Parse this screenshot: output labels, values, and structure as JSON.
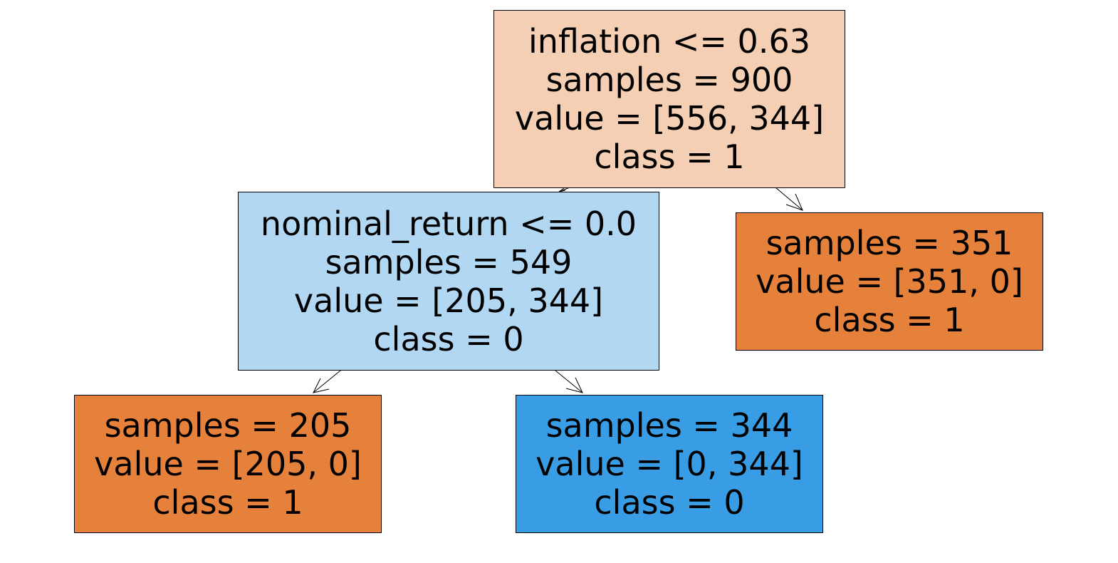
{
  "tree": {
    "root": {
      "split": "inflation <= 0.63",
      "samples": "samples = 900",
      "value": "value = [556, 344]",
      "class": "class = 1",
      "fill": "#f4cfb3"
    },
    "left": {
      "split": "nominal_return <= 0.0",
      "samples": "samples = 549",
      "value": "value = [205, 344]",
      "class": "class = 0",
      "fill": "#b1d7f3"
    },
    "right": {
      "samples": "samples = 351",
      "value": "value = [351, 0]",
      "class": "class = 1",
      "fill": "#e6813c"
    },
    "left_left": {
      "samples": "samples = 205",
      "value": "value = [205, 0]",
      "class": "class = 1",
      "fill": "#e6813c"
    },
    "left_right": {
      "samples": "samples = 344",
      "value": "value = [0, 344]",
      "class": "class = 0",
      "fill": "#399de5"
    }
  }
}
